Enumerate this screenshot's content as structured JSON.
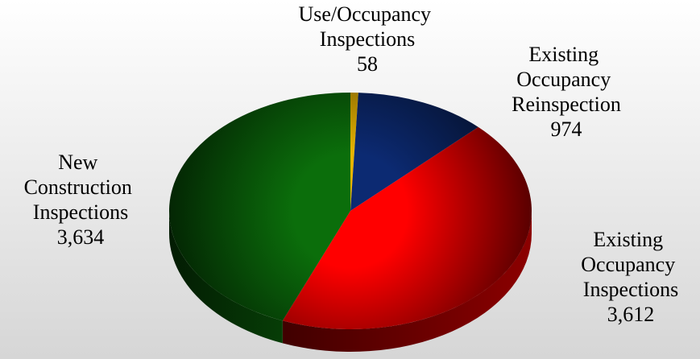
{
  "chart_data": {
    "type": "pie",
    "categories": [
      "Use/Occupancy Inspections",
      "Existing Occupancy Reinspection",
      "Existing Occupancy Inspections",
      "New Construction Inspections"
    ],
    "values": [
      58,
      974,
      3612,
      3634
    ],
    "value_labels": [
      "58",
      "974",
      "3,612",
      "3,634"
    ],
    "colors": [
      "#e8b400",
      "#0c2a72",
      "#ff0000",
      "#0b6e0b"
    ]
  }
}
